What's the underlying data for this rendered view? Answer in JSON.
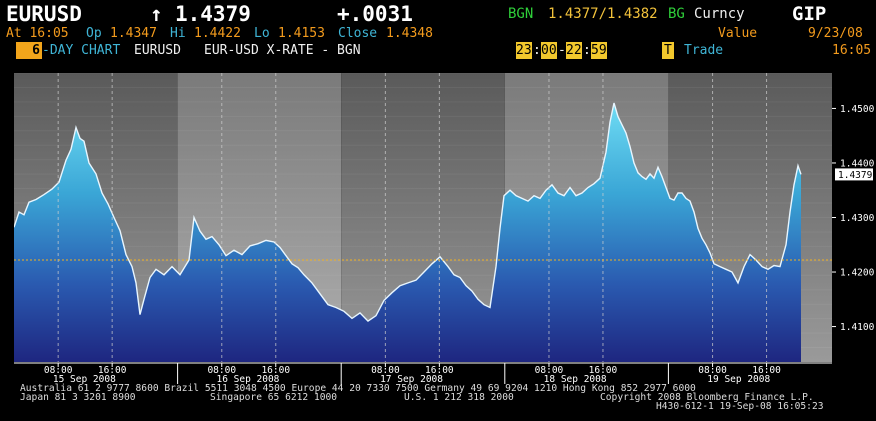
{
  "header": {
    "ticker": "EURUSD",
    "arrow": "↑",
    "last": "1.4379",
    "change": "+.0031",
    "source": "BGN",
    "bid_ask": "1.4377/1.4382",
    "source2": "BG",
    "screen": "Curncy",
    "function": "GIP",
    "time_line": "At 16:05",
    "open_label": "Op",
    "open": "1.4347",
    "high_label": "Hi",
    "high": "1.4422",
    "low_label": "Lo",
    "low": "1.4153",
    "close_label": "Close",
    "close": "1.4348",
    "value_label": "Value",
    "value_date": "9/23/08",
    "days": "6",
    "chart_label": "-DAY CHART",
    "pair": "EURUSD",
    "description": "EUR-USD X-RATE - BGN",
    "t1h": "23",
    "t1m": "00",
    "t2h": "22",
    "t2m": "59",
    "trade_box": "T",
    "trade_label": "Trade",
    "clock": "16:05"
  },
  "chart_data": {
    "type": "area",
    "title": "EURUSD",
    "ylim": [
      1.4035,
      1.4565
    ],
    "yticks": [
      "1.4500",
      "1.4400",
      "1.4300",
      "1.4200",
      "1.4100"
    ],
    "last_value_label": "1.4379",
    "reference_line": 1.4222,
    "days": [
      "15 Sep 2008",
      "16 Sep 2008",
      "17 Sep 2008",
      "18 Sep 2008",
      "19 Sep 2008"
    ],
    "hour_ticks": [
      "08:00",
      "16:00"
    ],
    "series": [
      {
        "name": "EURUSD",
        "values": [
          [
            0,
            1.4282
          ],
          [
            5,
            1.431
          ],
          [
            10,
            1.4305
          ],
          [
            15,
            1.4328
          ],
          [
            22,
            1.4333
          ],
          [
            30,
            1.4342
          ],
          [
            38,
            1.4352
          ],
          [
            45,
            1.4365
          ],
          [
            52,
            1.4405
          ],
          [
            57,
            1.4425
          ],
          [
            62,
            1.4465
          ],
          [
            66,
            1.4445
          ],
          [
            70,
            1.444
          ],
          [
            75,
            1.44
          ],
          [
            82,
            1.438
          ],
          [
            88,
            1.4345
          ],
          [
            94,
            1.4325
          ],
          [
            100,
            1.43
          ],
          [
            106,
            1.4276
          ],
          [
            112,
            1.4232
          ],
          [
            118,
            1.421
          ],
          [
            122,
            1.418
          ],
          [
            126,
            1.4122
          ],
          [
            130,
            1.415
          ],
          [
            136,
            1.419
          ],
          [
            142,
            1.4205
          ],
          [
            150,
            1.4195
          ],
          [
            158,
            1.421
          ],
          [
            166,
            1.4195
          ],
          [
            175,
            1.4222
          ],
          [
            180,
            1.43
          ],
          [
            186,
            1.4275
          ],
          [
            192,
            1.426
          ],
          [
            198,
            1.4265
          ],
          [
            205,
            1.425
          ],
          [
            212,
            1.423
          ],
          [
            220,
            1.424
          ],
          [
            228,
            1.4232
          ],
          [
            236,
            1.4248
          ],
          [
            244,
            1.4252
          ],
          [
            252,
            1.4258
          ],
          [
            260,
            1.4255
          ],
          [
            266,
            1.4245
          ],
          [
            272,
            1.423
          ],
          [
            278,
            1.4215
          ],
          [
            284,
            1.4208
          ],
          [
            290,
            1.4195
          ],
          [
            298,
            1.418
          ],
          [
            306,
            1.416
          ],
          [
            314,
            1.414
          ],
          [
            322,
            1.4135
          ],
          [
            330,
            1.4128
          ],
          [
            338,
            1.4115
          ],
          [
            346,
            1.4125
          ],
          [
            354,
            1.411
          ],
          [
            362,
            1.412
          ],
          [
            370,
            1.4148
          ],
          [
            378,
            1.4162
          ],
          [
            386,
            1.4175
          ],
          [
            394,
            1.418
          ],
          [
            402,
            1.4185
          ],
          [
            410,
            1.42
          ],
          [
            418,
            1.4215
          ],
          [
            426,
            1.4228
          ],
          [
            434,
            1.421
          ],
          [
            440,
            1.4195
          ],
          [
            446,
            1.419
          ],
          [
            452,
            1.4175
          ],
          [
            458,
            1.4165
          ],
          [
            464,
            1.415
          ],
          [
            470,
            1.414
          ],
          [
            476,
            1.4135
          ],
          [
            482,
            1.421
          ],
          [
            486,
            1.428
          ],
          [
            490,
            1.434
          ],
          [
            496,
            1.435
          ],
          [
            502,
            1.434
          ],
          [
            508,
            1.4335
          ],
          [
            514,
            1.433
          ],
          [
            520,
            1.434
          ],
          [
            526,
            1.4335
          ],
          [
            532,
            1.435
          ],
          [
            538,
            1.436
          ],
          [
            544,
            1.4345
          ],
          [
            550,
            1.434
          ],
          [
            556,
            1.4355
          ],
          [
            562,
            1.434
          ],
          [
            568,
            1.4345
          ],
          [
            574,
            1.4355
          ],
          [
            580,
            1.4362
          ],
          [
            586,
            1.4372
          ],
          [
            592,
            1.442
          ],
          [
            596,
            1.4475
          ],
          [
            600,
            1.451
          ],
          [
            604,
            1.4485
          ],
          [
            608,
            1.447
          ],
          [
            612,
            1.4455
          ],
          [
            616,
            1.443
          ],
          [
            620,
            1.44
          ],
          [
            624,
            1.4382
          ],
          [
            628,
            1.4375
          ],
          [
            632,
            1.437
          ],
          [
            636,
            1.438
          ],
          [
            640,
            1.4372
          ],
          [
            644,
            1.4392
          ],
          [
            648,
            1.4375
          ],
          [
            652,
            1.4355
          ],
          [
            656,
            1.4335
          ],
          [
            660,
            1.4332
          ],
          [
            664,
            1.4345
          ],
          [
            668,
            1.4345
          ],
          [
            672,
            1.4335
          ],
          [
            676,
            1.433
          ],
          [
            680,
            1.431
          ],
          [
            684,
            1.428
          ],
          [
            688,
            1.4262
          ],
          [
            692,
            1.425
          ],
          [
            696,
            1.4235
          ],
          [
            700,
            1.4215
          ],
          [
            706,
            1.421
          ],
          [
            712,
            1.4205
          ],
          [
            718,
            1.42
          ],
          [
            724,
            1.418
          ],
          [
            730,
            1.421
          ],
          [
            736,
            1.4232
          ],
          [
            742,
            1.4222
          ],
          [
            748,
            1.421
          ],
          [
            754,
            1.4205
          ],
          [
            760,
            1.4212
          ],
          [
            766,
            1.421
          ],
          [
            772,
            1.425
          ],
          [
            776,
            1.431
          ],
          [
            780,
            1.436
          ],
          [
            784,
            1.4395
          ],
          [
            787,
            1.4379
          ]
        ]
      }
    ],
    "grid": true
  },
  "footer": {
    "line1": "Australia 61 2 9777 8600 Brazil 5511 3048 4500 Europe 44 20 7330 7500 Germany 49 69 9204 1210 Hong Kong 852 2977 6000",
    "line2a": "Japan 81 3 3201 8900",
    "line2b": "Singapore 65 6212 1000",
    "line2c": "U.S. 1 212 318 2000",
    "line2d": "Copyright 2008 Bloomberg Finance L.P.",
    "line3": "H430-612-1 19-Sep-08 16:05:23"
  },
  "colors": {
    "background": "#000000",
    "area_top": "#5fd4ee",
    "area_bottom": "#1e2a8a",
    "reference": "#f0b020",
    "header_orange": "#f39b1d",
    "header_green": "#2fcf3a"
  }
}
